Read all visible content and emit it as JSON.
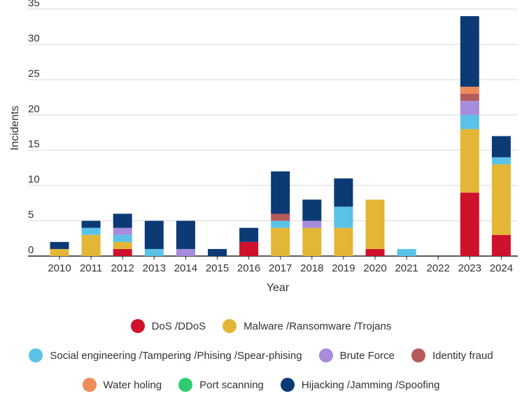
{
  "chart_data": {
    "type": "bar",
    "stacked": true,
    "title": "",
    "xlabel": "Year",
    "ylabel": "Incidents",
    "ylim": [
      0,
      35
    ],
    "yticks": [
      0,
      5,
      10,
      15,
      20,
      25,
      30,
      35
    ],
    "grid": true,
    "legend_position": "bottom",
    "categories": [
      "2010",
      "2011",
      "2012",
      "2013",
      "2014",
      "2015",
      "2016",
      "2017",
      "2018",
      "2019",
      "2020",
      "2021",
      "2022",
      "2023",
      "2024"
    ],
    "series": [
      {
        "name": "DoS /DDoS",
        "color": "#D0112B",
        "values": [
          0,
          0,
          1,
          0,
          0,
          0,
          2,
          0,
          0,
          0,
          1,
          0,
          0,
          9,
          3
        ]
      },
      {
        "name": "Malware /Ransomware /Trojans",
        "color": "#E3B735",
        "values": [
          1,
          3,
          1,
          0,
          0,
          0,
          0,
          4,
          4,
          4,
          7,
          0,
          0,
          9,
          10
        ]
      },
      {
        "name": "Social engineering /Tampering /Phising /Spear-phising",
        "color": "#5BC2E7",
        "values": [
          0,
          1,
          1,
          1,
          0,
          0,
          0,
          1,
          0,
          3,
          0,
          1,
          0,
          2,
          1
        ]
      },
      {
        "name": "Brute Force",
        "color": "#A78BDD",
        "values": [
          0,
          0,
          1,
          0,
          1,
          0,
          0,
          0,
          1,
          0,
          0,
          0,
          0,
          2,
          0
        ]
      },
      {
        "name": "Identity fraud",
        "color": "#B55B5B",
        "values": [
          0,
          0,
          0,
          0,
          0,
          0,
          0,
          1,
          0,
          0,
          0,
          0,
          0,
          1,
          0
        ]
      },
      {
        "name": "Water holing",
        "color": "#EF8A5B",
        "values": [
          0,
          0,
          0,
          0,
          0,
          0,
          0,
          0,
          0,
          0,
          0,
          0,
          0,
          1,
          0
        ]
      },
      {
        "name": "Port scanning",
        "color": "#2ECC71",
        "values": [
          0,
          0,
          0,
          0,
          0,
          0,
          0,
          0,
          0,
          0,
          0,
          0,
          0,
          0,
          0
        ]
      },
      {
        "name": "Hijacking /Jamming /Spoofing",
        "color": "#0B3A75",
        "values": [
          1,
          1,
          2,
          4,
          4,
          1,
          2,
          6,
          3,
          4,
          0,
          0,
          0,
          10,
          3
        ]
      }
    ]
  }
}
